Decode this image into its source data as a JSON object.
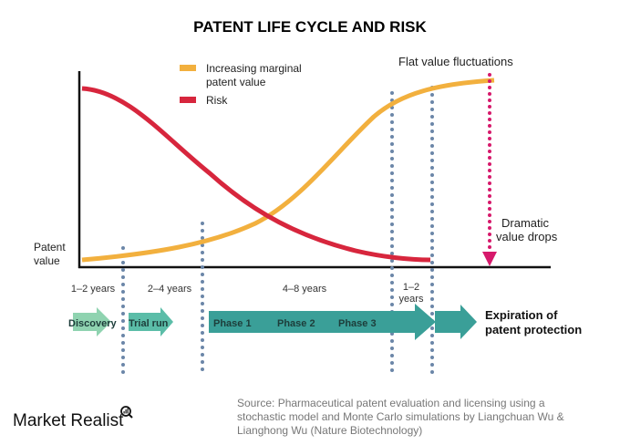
{
  "title": "PATENT LIFE CYCLE AND RISK",
  "legend": {
    "value_line1": "Increasing marginal",
    "value_line2": "patent value",
    "risk": "Risk"
  },
  "annotations": {
    "flat": "Flat value fluctuations",
    "drop_line1": "Dramatic",
    "drop_line2": "value drops",
    "yaxis_line1": "Patent",
    "yaxis_line2": "value"
  },
  "durations": [
    "1–2 years",
    "2–4 years",
    "4–8 years",
    "1–2",
    "years"
  ],
  "stages": {
    "discovery": "Discovery",
    "trial": "Trial run",
    "phase1": "Phase 1",
    "phase2": "Phase 2",
    "phase3": "Phase 3",
    "expiration_line1": "Expiration of",
    "expiration_line2": "patent protection"
  },
  "brand": "Market Realist",
  "source": [
    "Source: Pharmaceutical patent evaluation and licensing using a",
    "stochastic model and Monte Carlo simulations by Liangchuan Wu &",
    "Lianghong Wu (Nature Biotechnology)"
  ],
  "colors": {
    "value": "#f2b03e",
    "risk": "#d7263d",
    "drop": "#d6196b",
    "dots": "#6b86a8",
    "arrow_light": "#8fd3b0",
    "arrow_mid": "#5bbda8",
    "arrow_dark": "#3a9f98"
  }
}
